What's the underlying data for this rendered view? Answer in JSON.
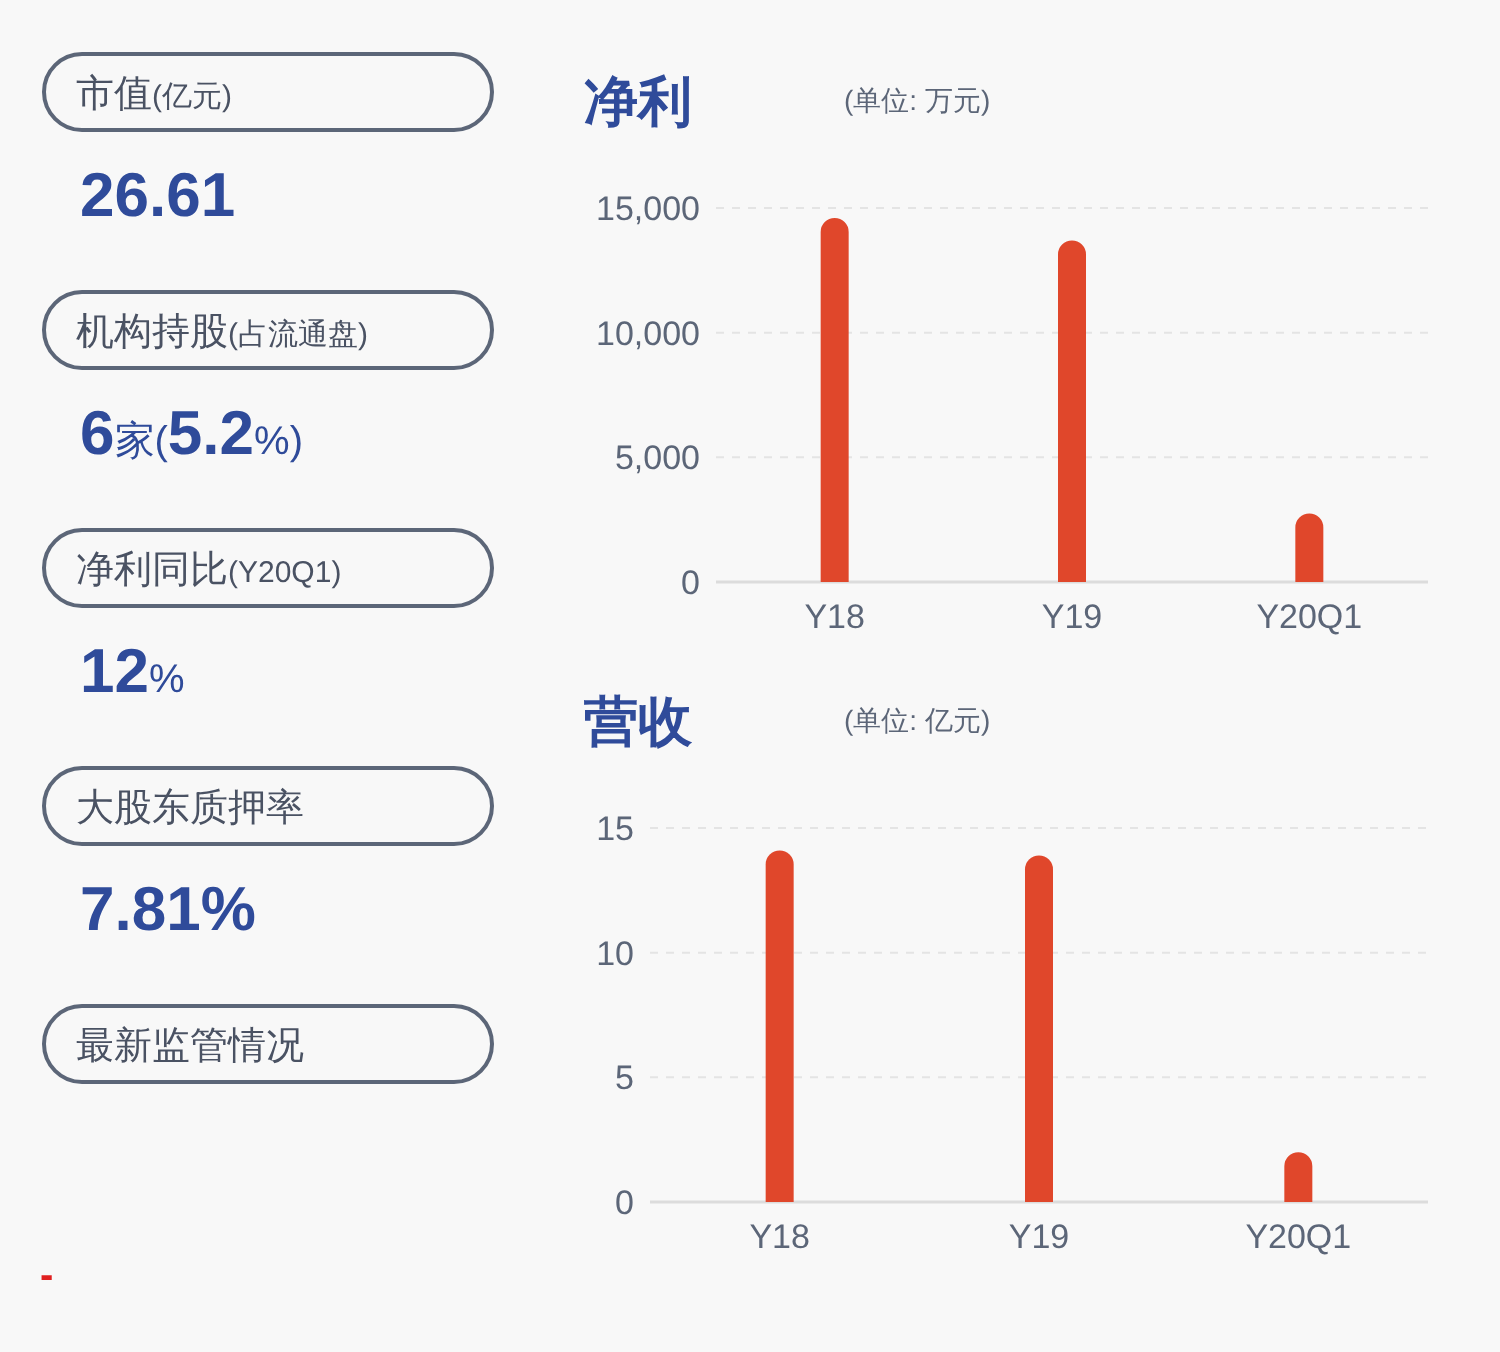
{
  "chart_data": [
    {
      "type": "other",
      "annotations": [
        "市值(亿元)",
        "26.61",
        "机构持股(占流通盘)",
        "6家(5.2%)",
        "净利同比(Y20Q1)",
        "12%",
        "大股东质押率",
        "7.81%",
        "最新监管情况",
        "-"
      ]
    },
    {
      "type": "bar",
      "title": "净利",
      "subtitle": "(单位: 万元)",
      "categories": [
        "Y18",
        "Y19",
        "Y20Q1"
      ],
      "series": [
        {
          "color": "#e0472b",
          "values": [
            14600,
            13700,
            2750
          ]
        }
      ],
      "ylim": [
        0,
        15000
      ],
      "yticks": [
        0,
        {
          "value": 5000,
          "label": "5,000"
        },
        {
          "value": 10000,
          "label": "10,000"
        },
        {
          "value": 15000,
          "label": "15,000"
        }
      ],
      "grid": "y"
    },
    {
      "type": "bar",
      "title": "营收",
      "subtitle": "(单位: 亿元)",
      "categories": [
        "Y18",
        "Y19",
        "Y20Q1"
      ],
      "series": [
        {
          "color": "#e0472b",
          "values": [
            14.1,
            13.9,
            2.0
          ]
        }
      ],
      "ylim": [
        0,
        15
      ],
      "yticks": [
        0,
        5,
        10,
        15
      ],
      "grid": "y"
    }
  ]
}
